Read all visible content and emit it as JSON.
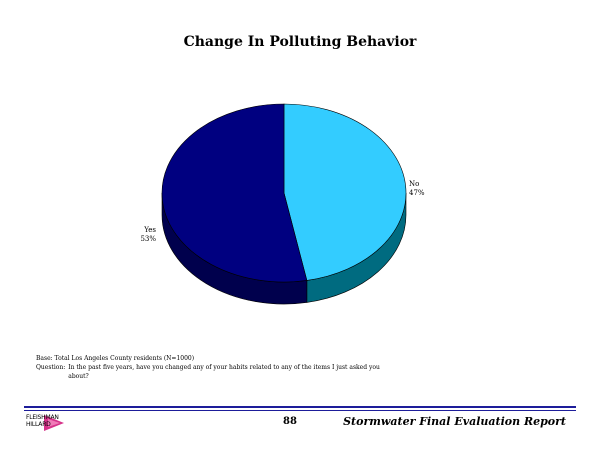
{
  "chart_data": {
    "type": "pie",
    "title": "Change In Polluting Behavior",
    "slices": [
      {
        "label": "No",
        "percent_label": "47%",
        "value": 47,
        "color": "#33ccff",
        "side_color": "#006b80"
      },
      {
        "label": "Yes",
        "percent_label": "53%",
        "value": 53,
        "color": "#000080",
        "side_color": "#00004d"
      }
    ],
    "style": "3d"
  },
  "notes": {
    "base": "Base: Total Los Angeles County residents (N=1000)",
    "question_label": "Question:",
    "question_text": "In the past five years, have you changed any of your habits related to any of the items I just asked you about?"
  },
  "footer": {
    "page_number": "88",
    "report_title": "Stormwater Final Evaluation Report",
    "logo_text_top": "FLEISHMAN",
    "logo_text_bottom": "HILLARD"
  }
}
